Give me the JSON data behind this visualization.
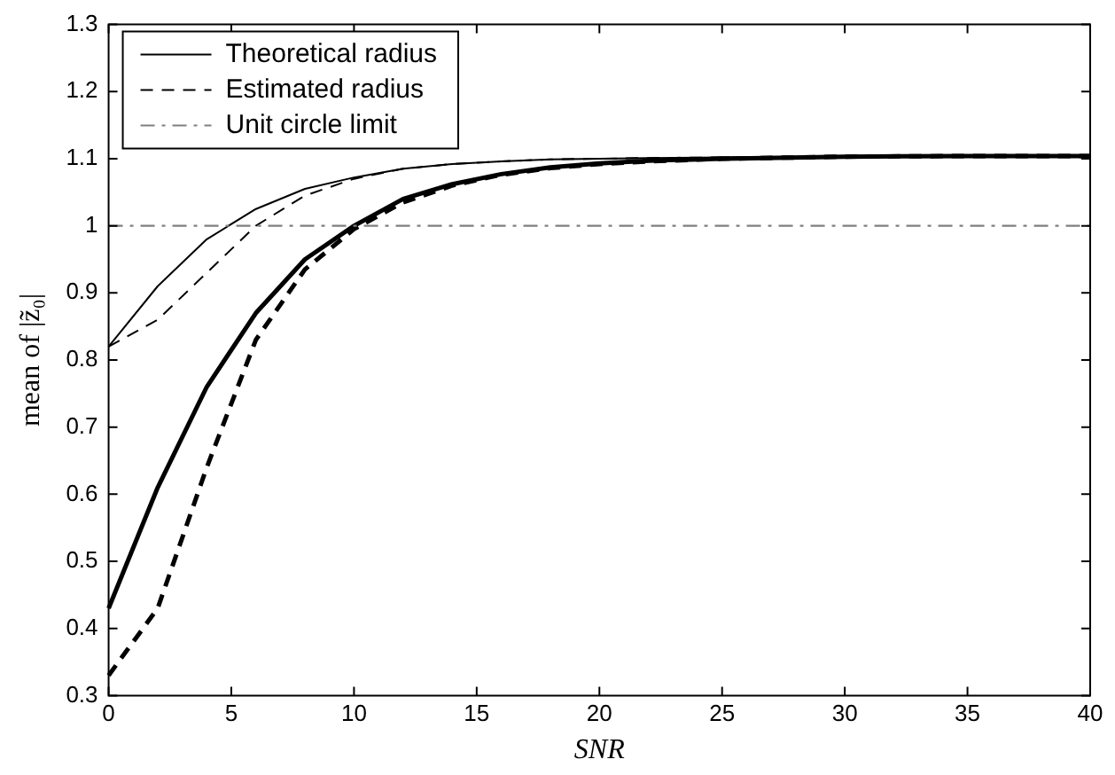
{
  "chart_data": {
    "type": "line",
    "xlabel": "SNR",
    "ylabel": "mean of |z̃₀|",
    "x": [
      0,
      2,
      4,
      6,
      8,
      10,
      12,
      14,
      16,
      18,
      20,
      22,
      25,
      30,
      35,
      40
    ],
    "series": [
      {
        "name": "Theoretical radius",
        "color": "#000000",
        "line_style": "solid",
        "values": [
          0.82,
          0.91,
          0.98,
          1.025,
          1.055,
          1.072,
          1.085,
          1.092,
          1.096,
          1.099,
          1.1,
          1.101,
          1.102,
          1.103,
          1.104,
          1.104
        ]
      },
      {
        "name": "Estimated radius",
        "color": "#000000",
        "line_style": "dashed",
        "values": [
          0.82,
          0.86,
          0.93,
          1.0,
          1.045,
          1.07,
          1.085,
          1.092,
          1.096,
          1.099,
          1.1,
          1.101,
          1.102,
          1.103,
          1.104,
          1.104
        ]
      },
      {
        "color": "#000000",
        "line_style": "solid",
        "values": [
          0.43,
          0.61,
          0.76,
          0.87,
          0.95,
          1.0,
          1.04,
          1.062,
          1.077,
          1.087,
          1.093,
          1.097,
          1.1,
          1.103,
          1.104,
          1.104
        ]
      },
      {
        "color": "#000000",
        "line_style": "dashed",
        "values": [
          0.33,
          0.43,
          0.64,
          0.83,
          0.935,
          0.995,
          1.035,
          1.06,
          1.076,
          1.086,
          1.092,
          1.096,
          1.1,
          1.103,
          1.104,
          1.104
        ]
      }
    ],
    "ref_lines": [
      {
        "axis": "y",
        "value": 1,
        "label": "Unit circle limit",
        "color": "#7f7f7f",
        "line_style": "dashdot"
      }
    ],
    "xlim": [
      0,
      40
    ],
    "xticks": [
      0,
      5,
      10,
      15,
      20,
      25,
      30,
      35,
      40
    ],
    "ylim": [
      0.3,
      1.3
    ],
    "yticks": [
      0.3,
      0.4,
      0.5,
      0.6,
      0.7,
      0.8,
      0.9,
      1,
      1.1,
      1.2,
      1.3
    ],
    "grid": false,
    "legend": "top left",
    "marker": "none"
  }
}
